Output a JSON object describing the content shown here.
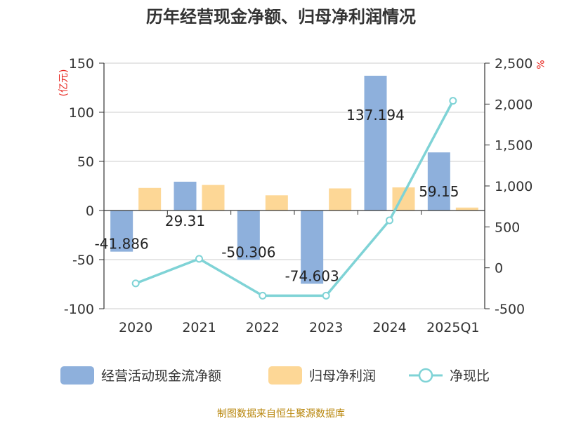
{
  "chart_data": {
    "type": "bar",
    "title": "历年经营现金净额、归母净利润情况",
    "categories": [
      "2020",
      "2021",
      "2022",
      "2023",
      "2024",
      "2025Q1"
    ],
    "y_left": {
      "unit": "(亿元)",
      "ylim": [
        -100,
        150
      ],
      "ticks": [
        150,
        100,
        50,
        0,
        -50,
        -100
      ]
    },
    "y_right": {
      "unit": "%",
      "ylim": [
        -500,
        2500
      ],
      "ticks": [
        "2,500",
        "2,000",
        "1,500",
        "1,000",
        "500",
        "0",
        "-500"
      ],
      "tick_values": [
        2500,
        2000,
        1500,
        1000,
        500,
        0,
        -500
      ]
    },
    "series": [
      {
        "name": "经营活动现金流净额",
        "type": "bar",
        "axis": "left",
        "color": "#8eb0dc",
        "values": [
          -41.886,
          29.31,
          -50.306,
          -74.603,
          137.194,
          59.15
        ],
        "labels": [
          "-41.886",
          "29.31",
          "-50.306",
          "-74.603",
          "137.194",
          "59.15"
        ]
      },
      {
        "name": "归母净利润",
        "type": "bar",
        "axis": "left",
        "color": "#fdd796",
        "values": [
          23,
          26,
          15.5,
          22.5,
          23.5,
          3
        ]
      },
      {
        "name": "净现比",
        "type": "line",
        "axis": "right",
        "color": "#7fd3d6",
        "values": [
          -190,
          110,
          -340,
          -340,
          580,
          2040
        ]
      }
    ],
    "source": "制图数据来自恒生聚源数据库"
  }
}
